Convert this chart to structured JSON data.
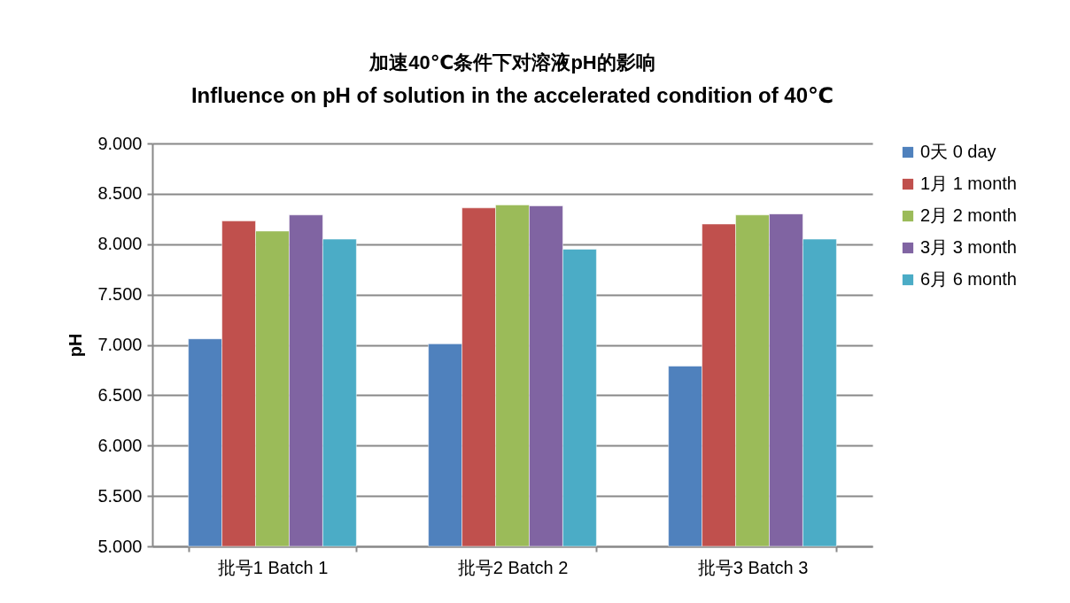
{
  "chart_data": {
    "type": "bar",
    "title": "加速40℃条件下对溶液pH的影响",
    "subtitle": "Influence on pH of solution in the accelerated condition of 40℃",
    "ylabel": "pH",
    "categories": [
      "批号1 Batch 1",
      "批号2 Batch 2",
      "批号3 Batch 3"
    ],
    "series": [
      {
        "name": "0天 0 day",
        "color": "#4f81bd",
        "values": [
          7.06,
          7.01,
          6.79
        ]
      },
      {
        "name": "1月 1 month",
        "color": "#c0504d",
        "values": [
          8.23,
          8.36,
          8.2
        ]
      },
      {
        "name": "2月 2 month",
        "color": "#9bbb59",
        "values": [
          8.13,
          8.39,
          8.29
        ]
      },
      {
        "name": "3月 3 month",
        "color": "#8064a2",
        "values": [
          8.29,
          8.38,
          8.3
        ]
      },
      {
        "name": "6月 6 month",
        "color": "#4bacc6",
        "values": [
          8.05,
          7.95,
          8.05
        ]
      }
    ],
    "ylim": [
      5,
      9
    ],
    "yticks": [
      {
        "value": 5,
        "label": "5.000"
      },
      {
        "value": 5.5,
        "label": "5.500"
      },
      {
        "value": 6,
        "label": "6.000"
      },
      {
        "value": 6.5,
        "label": "6.500"
      },
      {
        "value": 7,
        "label": "7.000"
      },
      {
        "value": 7.5,
        "label": "7.500"
      },
      {
        "value": 8,
        "label": "8.000"
      },
      {
        "value": 8.5,
        "label": "8.500"
      },
      {
        "value": 9,
        "label": "9.000"
      }
    ],
    "grid": "y",
    "legend": "right"
  }
}
